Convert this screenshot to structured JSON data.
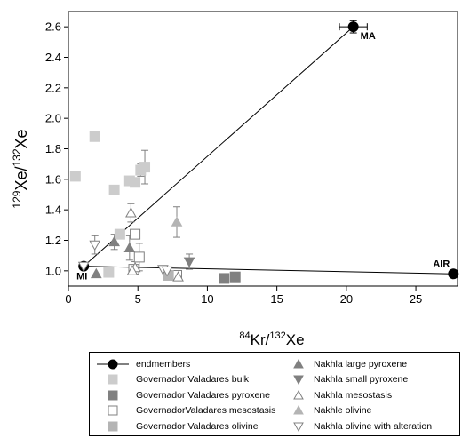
{
  "chart_data": {
    "type": "scatter",
    "title": "",
    "xlabel": {
      "sup": "84",
      "base": "Kr/",
      "sup2": "132",
      "base2": "Xe"
    },
    "ylabel": {
      "sup": "129",
      "base": "Xe/",
      "sup2": "132",
      "base2": "Xe"
    },
    "xlim": [
      0,
      28
    ],
    "ylim": [
      0.9,
      2.7
    ],
    "xticks": [
      "0",
      "5",
      "10",
      "15",
      "20",
      "25"
    ],
    "xtick_values": [
      0,
      5,
      10,
      15,
      20,
      25
    ],
    "yticks": [
      "1.0",
      "1.2",
      "1.4",
      "1.6",
      "1.8",
      "2.0",
      "2.2",
      "2.4",
      "2.6"
    ],
    "ytick_values": [
      1.0,
      1.2,
      1.4,
      1.6,
      1.8,
      2.0,
      2.2,
      2.4,
      2.6
    ],
    "grid": false,
    "legend_position": "below",
    "annotations": [
      {
        "text": "MA",
        "x": 20.5,
        "y": 2.6
      },
      {
        "text": "MI",
        "x": 1.1,
        "y": 1.03
      },
      {
        "text": "AIR",
        "x": 27.7,
        "y": 0.98
      }
    ],
    "lines": [
      {
        "name": "endmembers",
        "from": [
          1.1,
          1.03
        ],
        "to": [
          20.5,
          2.6
        ]
      },
      {
        "name": "endmembers",
        "from": [
          1.1,
          1.03
        ],
        "to": [
          27.7,
          0.98
        ]
      }
    ],
    "series": [
      {
        "name": "endmembers",
        "marker": "circle",
        "color": "#000000",
        "points": [
          {
            "x": 20.5,
            "y": 2.6,
            "xerr": 1.0,
            "yerr": 0.04
          },
          {
            "x": 1.1,
            "y": 1.03
          },
          {
            "x": 27.7,
            "y": 0.98
          }
        ]
      },
      {
        "name": "Governador Valadares bulk",
        "marker": "square",
        "color": "#cccccc",
        "points": [
          {
            "x": 0.5,
            "y": 1.62
          },
          {
            "x": 1.9,
            "y": 1.88
          },
          {
            "x": 3.3,
            "y": 1.53
          },
          {
            "x": 4.4,
            "y": 1.59
          },
          {
            "x": 4.8,
            "y": 1.58
          },
          {
            "x": 5.2,
            "y": 1.66,
            "yerr": 0.04
          },
          {
            "x": 5.5,
            "y": 1.68,
            "yerr": 0.11
          },
          {
            "x": 3.7,
            "y": 1.24
          },
          {
            "x": 2.9,
            "y": 0.99
          }
        ]
      },
      {
        "name": "Governador Valadares pyroxene",
        "marker": "square",
        "color": "#808080",
        "points": [
          {
            "x": 11.2,
            "y": 0.95
          },
          {
            "x": 12.0,
            "y": 0.96
          }
        ]
      },
      {
        "name": "GovernadorValadares mesostasis",
        "marker": "square-open",
        "color": "#808080",
        "points": [
          {
            "x": 4.8,
            "y": 1.24,
            "yerr": 0.03
          },
          {
            "x": 5.1,
            "y": 1.09,
            "yerr": 0.09
          },
          {
            "x": 4.7,
            "y": 1.01
          },
          {
            "x": 7.8,
            "y": 0.97
          }
        ]
      },
      {
        "name": "Governador Valadares olivine",
        "marker": "square",
        "color": "#b4b4b4",
        "points": [
          {
            "x": 7.2,
            "y": 0.97
          }
        ]
      },
      {
        "name": "Nakhla large pyroxene",
        "marker": "triangle-up",
        "color": "#808080",
        "points": [
          {
            "x": 2.0,
            "y": 0.98
          },
          {
            "x": 3.3,
            "y": 1.19,
            "yerr": 0.05
          },
          {
            "x": 4.4,
            "y": 1.15,
            "yerr": 0.08
          }
        ]
      },
      {
        "name": "Nakhla small pyroxene",
        "marker": "triangle-down",
        "color": "#808080",
        "points": [
          {
            "x": 8.7,
            "y": 1.06,
            "yerr": 0.05
          }
        ]
      },
      {
        "name": "Nakhla mesostasis",
        "marker": "triangle-up-open",
        "color": "#808080",
        "points": [
          {
            "x": 4.5,
            "y": 1.38,
            "yerr": 0.06
          },
          {
            "x": 4.8,
            "y": 1.02,
            "yerr": 0.04
          },
          {
            "x": 4.6,
            "y": 1.0
          },
          {
            "x": 7.9,
            "y": 0.96
          }
        ]
      },
      {
        "name": "Nakhle olivine",
        "marker": "triangle-up",
        "color": "#b4b4b4",
        "points": [
          {
            "x": 7.8,
            "y": 1.32,
            "yerr": 0.1
          }
        ]
      },
      {
        "name": "Nakhla olivine with alteration",
        "marker": "triangle-down-open",
        "color": "#808080",
        "points": [
          {
            "x": 1.9,
            "y": 1.17,
            "yerr": 0.06
          },
          {
            "x": 6.8,
            "y": 1.01
          },
          {
            "x": 7.1,
            "y": 1.0
          },
          {
            "x": 1.1,
            "y": 1.03
          }
        ]
      }
    ]
  },
  "legend": {
    "left": [
      {
        "label": "endmembers",
        "symbol": "line-circle",
        "color": "#000000"
      },
      {
        "label": "Governador Valadares bulk",
        "symbol": "square",
        "color": "#cccccc"
      },
      {
        "label": "Governador Valadares pyroxene",
        "symbol": "square",
        "color": "#808080"
      },
      {
        "label": "GovernadorValadares mesostasis",
        "symbol": "square-open",
        "color": "#808080"
      },
      {
        "label": "Governador Valadares olivine",
        "symbol": "square",
        "color": "#b4b4b4"
      }
    ],
    "right": [
      {
        "label": "Nakhla large pyroxene",
        "symbol": "triangle-up",
        "color": "#808080"
      },
      {
        "label": "Nakhla small pyroxene",
        "symbol": "triangle-down",
        "color": "#808080"
      },
      {
        "label": "Nakhla mesostasis",
        "symbol": "triangle-up-open",
        "color": "#808080"
      },
      {
        "label": "Nakhle olivine",
        "symbol": "triangle-up",
        "color": "#b4b4b4"
      },
      {
        "label": "Nakhla olivine with alteration",
        "symbol": "triangle-down-open",
        "color": "#808080"
      }
    ]
  }
}
